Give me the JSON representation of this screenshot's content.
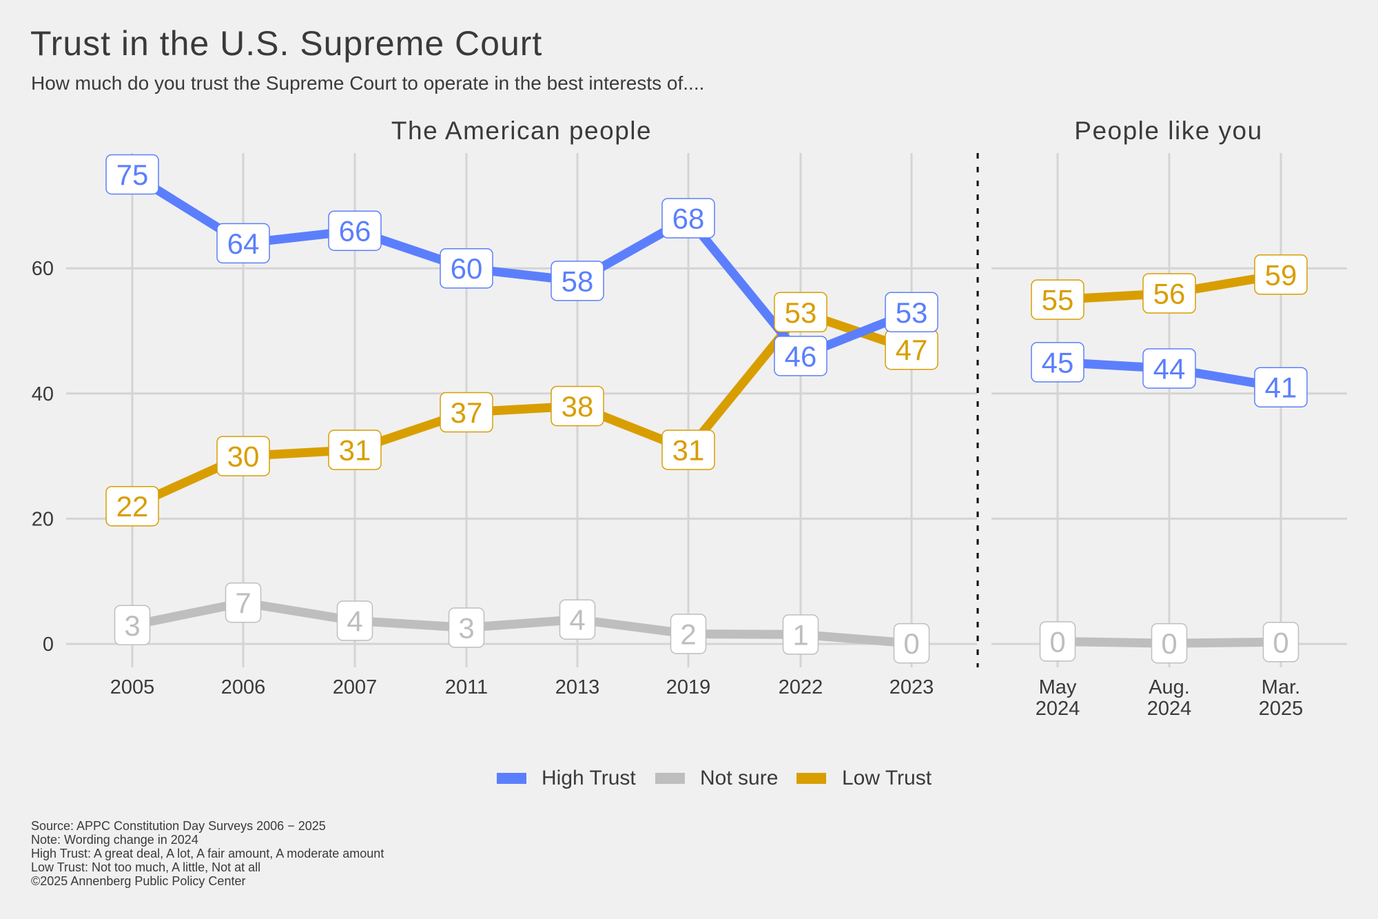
{
  "title": "Trust in the U.S. Supreme Court",
  "subtitle": "How much do you trust the Supreme Court to operate in the best interests of....",
  "caption": [
    "Source: APPC Constitution Day Surveys 2006 − 2025",
    "Note: Wording change in 2024",
    "High Trust: A great deal, A lot, A fair amount, A moderate amount",
    "Low Trust: Not too much, A little, Not at all",
    "©2025 Annenberg Public Policy Center"
  ],
  "colors": {
    "High Trust": "#5b7ffc",
    "Not sure": "#bebebe",
    "Low Trust": "#d89e00",
    "grid": "#d4d4d4",
    "background": "#f0f0f0"
  },
  "chart_data": [
    {
      "type": "line",
      "panel": "The American people",
      "x": [
        "2005",
        "2006",
        "2007",
        "2011",
        "2013",
        "2019",
        "2022",
        "2023"
      ],
      "ylim": [
        0,
        78
      ],
      "yticks": [
        0,
        20,
        40,
        60
      ],
      "grid": true,
      "series": [
        {
          "name": "High Trust",
          "values": [
            75,
            64,
            66,
            60,
            58,
            68,
            46,
            53
          ],
          "labels": [
            "75",
            "64",
            "66",
            "60",
            "58",
            "68",
            "46",
            "53"
          ]
        },
        {
          "name": "Not sure",
          "values": [
            3,
            6.6,
            3.7,
            2.6,
            3.9,
            1.6,
            1.5,
            0.1
          ],
          "labels": [
            "3",
            "7",
            "4",
            "3",
            "4",
            "2",
            "1",
            "0"
          ]
        },
        {
          "name": "Low Trust",
          "values": [
            22,
            30,
            31,
            37,
            38,
            31,
            53,
            47
          ],
          "labels": [
            "22",
            "30",
            "31",
            "37",
            "38",
            "31",
            "53",
            "47"
          ]
        }
      ]
    },
    {
      "type": "line",
      "panel": "People like you",
      "x": [
        "May\n2024",
        "Aug.\n2024",
        "Mar.\n2025"
      ],
      "ylim": [
        0,
        78
      ],
      "yticks": [
        0,
        20,
        40,
        60
      ],
      "grid": true,
      "series": [
        {
          "name": "High Trust",
          "values": [
            45,
            44,
            41
          ],
          "labels": [
            "45",
            "44",
            "41"
          ]
        },
        {
          "name": "Not sure",
          "values": [
            0.4,
            0.1,
            0.3
          ],
          "labels": [
            "0",
            "0",
            "0"
          ]
        },
        {
          "name": "Low Trust",
          "values": [
            55,
            56,
            59
          ],
          "labels": [
            "55",
            "56",
            "59"
          ]
        }
      ]
    }
  ],
  "legend": {
    "position": "bottom",
    "items": [
      "High Trust",
      "Not sure",
      "Low Trust"
    ]
  }
}
